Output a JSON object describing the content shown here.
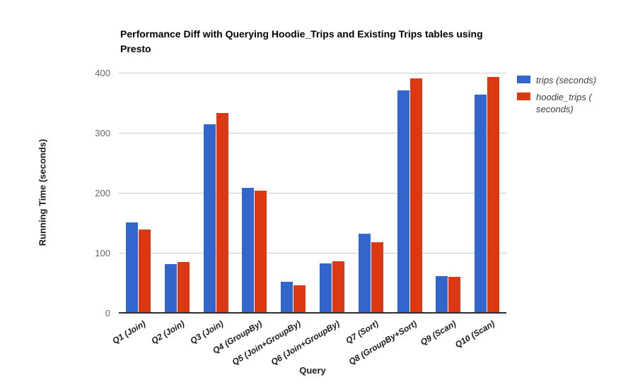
{
  "title": "Performance Diff with Querying Hoodie_Trips and Existing Trips tables using Presto",
  "chart_data": {
    "type": "bar",
    "title": "Performance Diff with Querying Hoodie_Trips and Existing Trips tables using Presto",
    "xlabel": "Query",
    "ylabel": "Running Time (seconds)",
    "ylim": [
      0,
      400
    ],
    "yticks": [
      0,
      100,
      200,
      300,
      400
    ],
    "grid": true,
    "legend_position": "right",
    "categories": [
      "Q1 (Join)",
      "Q2 (Join)",
      "Q3 (Join)",
      "Q4 (GroupBy)",
      "Q5 (Join+GroupBy)",
      "Q6 (Join+GroupBy)",
      "Q7 (Sort)",
      "Q8 (GroupBy+Sort)",
      "Q9 (Scan)",
      "Q10 (Scan)"
    ],
    "series": [
      {
        "name": "trips (seconds)",
        "color": "#3366CC",
        "values": [
          150,
          80,
          313,
          207,
          51,
          81,
          131,
          370,
          60,
          362
        ]
      },
      {
        "name": "hoodie_trips (seconds)",
        "color": "#DC3912",
        "values": [
          138,
          84,
          332,
          202,
          45,
          85,
          117,
          390,
          59,
          392
        ]
      }
    ]
  },
  "legend": {
    "items": [
      {
        "label": "trips (seconds)",
        "color": "#3366CC"
      },
      {
        "label": "hoodie_trips (\nseconds)",
        "color": "#DC3912"
      }
    ]
  },
  "colors": {
    "series_blue": "#3366CC",
    "series_red": "#DC3912",
    "gridline": "#cccccc",
    "axis_line": "#2e2e2e",
    "tick_text": "#666666",
    "label_text": "#1a1a1a"
  }
}
